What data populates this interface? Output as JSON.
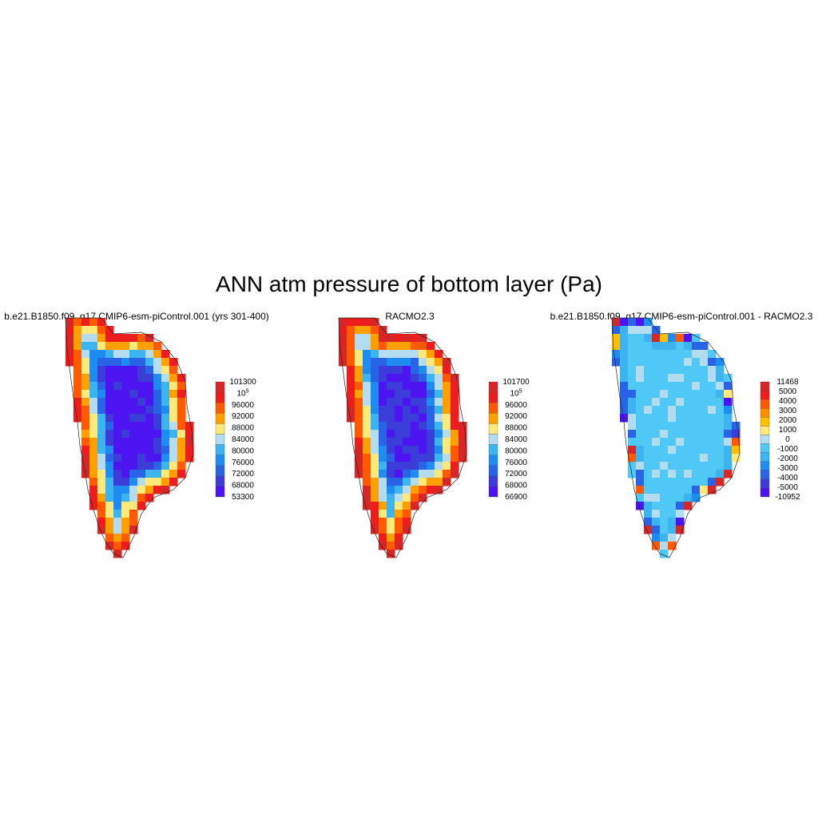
{
  "figure": {
    "title": "ANN atm pressure of bottom layer (Pa)"
  },
  "chart_data": [
    {
      "type": "heatmap",
      "title": "b.e21.B1850.f09_g17.CMIP6-esm-piControl.001 (yrs 301-400)",
      "variable": "atm pressure of bottom layer",
      "units": "Pa",
      "colorbar": {
        "labels": [
          "101300",
          "10^5",
          "96000",
          "92000",
          "88000",
          "84000",
          "80000",
          "76000",
          "72000",
          "68000",
          "53300"
        ],
        "colors": [
          "#d62728",
          "#ee1d1d",
          "#ff5a00",
          "#ffa000",
          "#ffe97a",
          "#b4dcf0",
          "#3cb4f0",
          "#1e8cf0",
          "#2a64e6",
          "#3c3cd9",
          "#4b14f0"
        ]
      },
      "field": "model"
    },
    {
      "type": "heatmap",
      "title": "RACMO2.3",
      "variable": "atm pressure of bottom layer",
      "units": "Pa",
      "colorbar": {
        "labels": [
          "101700",
          "10^5",
          "96000",
          "92000",
          "88000",
          "84000",
          "80000",
          "76000",
          "72000",
          "68000",
          "66900"
        ],
        "colors": [
          "#d62728",
          "#ee1d1d",
          "#ff5a00",
          "#ffa000",
          "#ffe97a",
          "#b4dcf0",
          "#3cb4f0",
          "#1e8cf0",
          "#2a64e6",
          "#3c3cd9",
          "#4b14f0"
        ]
      },
      "field": "obs"
    },
    {
      "type": "heatmap",
      "title": "b.e21.B1850.f09_g17.CMIP6-esm-piControl.001 - RACMO2.3",
      "variable": "atm pressure of bottom layer difference",
      "units": "Pa",
      "colorbar": {
        "labels": [
          "11468",
          "5000",
          "4000",
          "3000",
          "2000",
          "1000",
          "0",
          "-1000",
          "-2000",
          "-3000",
          "-4000",
          "-5000",
          "-10952"
        ],
        "colors": [
          "#d62728",
          "#ee1d1d",
          "#ff5a00",
          "#ff8c00",
          "#ffbe00",
          "#ffe97a",
          "#b4dcf0",
          "#50c8f5",
          "#3cb4f0",
          "#1e8cf0",
          "#2a64e6",
          "#3c3cd9",
          "#4b14f0"
        ]
      },
      "field": "diff"
    }
  ]
}
